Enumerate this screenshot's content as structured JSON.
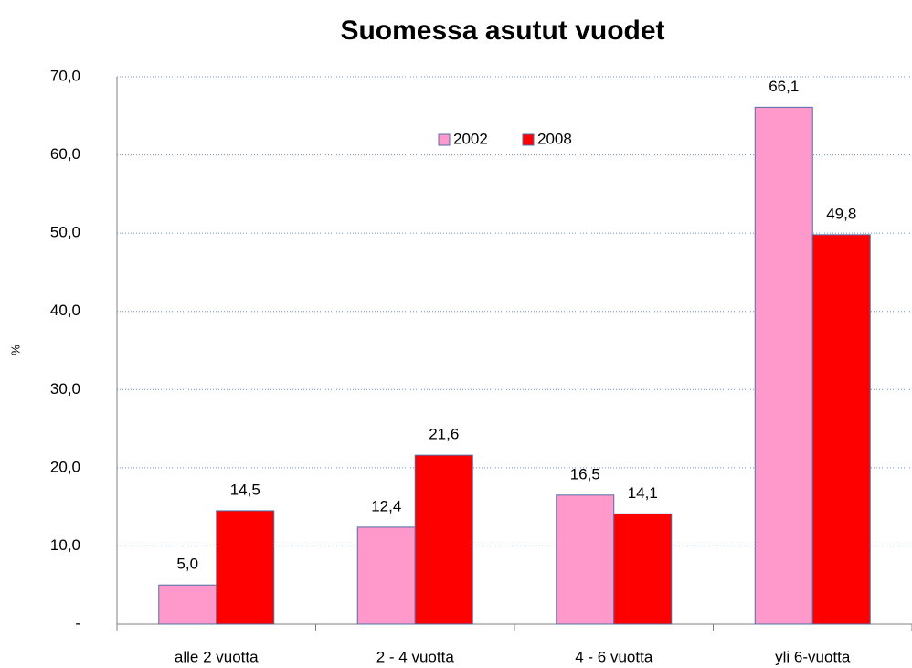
{
  "chart_data": {
    "type": "bar",
    "title": "Suomessa asutut vuodet",
    "y_label": "%",
    "categories": [
      "alle 2 vuotta",
      "2 - 4 vuotta",
      "4 - 6 vuotta",
      "yli 6-vuotta"
    ],
    "series": [
      {
        "name": "2002",
        "color": "#ff99cc",
        "values": [
          5.0,
          12.4,
          16.5,
          66.1
        ],
        "value_labels": [
          "5,0",
          "12,4",
          "16,5",
          "66,1"
        ]
      },
      {
        "name": "2008",
        "color": "#ff0000",
        "values": [
          14.5,
          21.6,
          14.1,
          49.8
        ],
        "value_labels": [
          "14,5",
          "21,6",
          "14,1",
          "49,8"
        ]
      }
    ],
    "ylim": [
      0,
      70
    ],
    "yticks": [
      {
        "value": 0,
        "label": "-"
      },
      {
        "value": 10,
        "label": "10,0"
      },
      {
        "value": 20,
        "label": "20,0"
      },
      {
        "value": 30,
        "label": "30,0"
      },
      {
        "value": 40,
        "label": "40,0"
      },
      {
        "value": 50,
        "label": "50,0"
      },
      {
        "value": 60,
        "label": "60,0"
      },
      {
        "value": 70,
        "label": "70,0"
      }
    ],
    "grid": true,
    "legend": "top-center"
  }
}
